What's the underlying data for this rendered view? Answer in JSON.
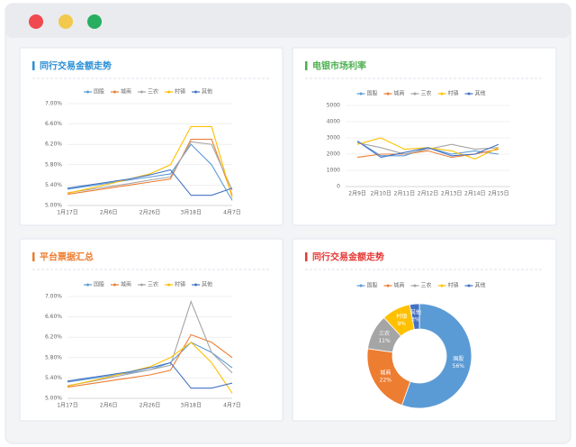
{
  "chart_data": [
    {
      "type": "line",
      "title": "同行交易金额走势",
      "categories": [
        "1月17日",
        null,
        "2月6日",
        null,
        "2月26日",
        null,
        "3月18日",
        null,
        "4月7日"
      ],
      "ylim": [
        5,
        7
      ],
      "yticks": [
        {
          "value": 5,
          "label": "5.00%"
        },
        {
          "value": 5.4,
          "label": "5.40%"
        },
        {
          "value": 5.8,
          "label": "5.80%"
        },
        {
          "value": 6.2,
          "label": "6.20%"
        },
        {
          "value": 6.6,
          "label": "6.60%"
        },
        {
          "value": 7,
          "label": "7.00%"
        }
      ],
      "grid": true,
      "series": [
        {
          "name": "国股",
          "color": "#5b9bd5",
          "values": [
            5.32,
            5.38,
            5.44,
            5.5,
            5.56,
            5.62,
            6.2,
            5.8,
            5.1
          ]
        },
        {
          "name": "城商",
          "color": "#ed7d31",
          "values": [
            5.22,
            5.28,
            5.34,
            5.4,
            5.46,
            5.52,
            6.3,
            6.3,
            5.2
          ]
        },
        {
          "name": "三农",
          "color": "#a5a5a5",
          "values": [
            5.25,
            5.31,
            5.37,
            5.43,
            5.5,
            5.56,
            6.25,
            6.2,
            5.3
          ]
        },
        {
          "name": "村镇",
          "color": "#ffc000",
          "values": [
            5.24,
            5.33,
            5.42,
            5.52,
            5.62,
            5.8,
            6.55,
            6.55,
            5.15
          ]
        },
        {
          "name": "其他",
          "color": "#4472c4",
          "values": [
            5.34,
            5.4,
            5.46,
            5.52,
            5.6,
            5.7,
            5.2,
            5.2,
            5.34
          ]
        }
      ]
    },
    {
      "type": "line",
      "title": "电银市场利率",
      "categories": [
        "2月9日",
        "2月10日",
        "2月11日",
        "2月12日",
        "2月13日",
        "2月14日",
        "2月15日"
      ],
      "ylim": [
        0,
        5000
      ],
      "yticks": [
        0,
        1000,
        2000,
        3000,
        4000,
        5000
      ],
      "grid": true,
      "series": [
        {
          "name": "国股",
          "color": "#5b9bd5",
          "values": [
            2800,
            1900,
            1900,
            2400,
            2000,
            2200,
            2000
          ]
        },
        {
          "name": "城商",
          "color": "#ed7d31",
          "values": [
            1800,
            2000,
            2000,
            2200,
            1800,
            2000,
            2300
          ]
        },
        {
          "name": "三农",
          "color": "#a5a5a5",
          "values": [
            2700,
            2400,
            2000,
            2300,
            2600,
            2300,
            2400
          ]
        },
        {
          "name": "村镇",
          "color": "#ffc000",
          "values": [
            2600,
            3000,
            2300,
            2400,
            2200,
            1700,
            2400
          ]
        },
        {
          "name": "其他",
          "color": "#4472c4",
          "values": [
            2800,
            1800,
            2100,
            2400,
            1900,
            2000,
            2600
          ]
        }
      ]
    },
    {
      "type": "line",
      "title": "平台票据汇总",
      "categories": [
        "1月17日",
        null,
        "2月6日",
        null,
        "2月26日",
        null,
        "3月18日",
        null,
        "4月7日"
      ],
      "ylim": [
        5,
        7
      ],
      "yticks": [
        {
          "value": 5,
          "label": "5.00%"
        },
        {
          "value": 5.4,
          "label": "5.40%"
        },
        {
          "value": 5.8,
          "label": "5.80%"
        },
        {
          "value": 6.2,
          "label": "6.20%"
        },
        {
          "value": 6.6,
          "label": "6.60%"
        },
        {
          "value": 7,
          "label": "7.00%"
        }
      ],
      "grid": true,
      "series": [
        {
          "name": "国股",
          "color": "#5b9bd5",
          "values": [
            5.32,
            5.38,
            5.44,
            5.5,
            5.56,
            5.7,
            6.1,
            5.9,
            5.6
          ]
        },
        {
          "name": "城商",
          "color": "#ed7d31",
          "values": [
            5.22,
            5.28,
            5.34,
            5.4,
            5.46,
            5.55,
            6.25,
            6.1,
            5.8
          ]
        },
        {
          "name": "三农",
          "color": "#a5a5a5",
          "values": [
            5.25,
            5.32,
            5.4,
            5.48,
            5.56,
            5.65,
            6.9,
            5.9,
            5.5
          ]
        },
        {
          "name": "村镇",
          "color": "#ffc000",
          "values": [
            5.24,
            5.33,
            5.42,
            5.52,
            5.62,
            5.8,
            6.1,
            5.7,
            5.1
          ]
        },
        {
          "name": "其他",
          "color": "#4472c4",
          "values": [
            5.34,
            5.4,
            5.46,
            5.52,
            5.6,
            5.7,
            5.2,
            5.2,
            5.3
          ]
        }
      ]
    },
    {
      "type": "pie",
      "title": "同行交易金额走势",
      "categories": [
        "国股",
        "城商",
        "三农",
        "村镇",
        "其他"
      ],
      "values": [
        56,
        22,
        11,
        9,
        3
      ],
      "value_labels": [
        "56%",
        "22%",
        "11%",
        "9%",
        "3%"
      ],
      "colors": [
        "#5b9bd5",
        "#ed7d31",
        "#a5a5a5",
        "#ffc000",
        "#4472c4"
      ]
    }
  ]
}
